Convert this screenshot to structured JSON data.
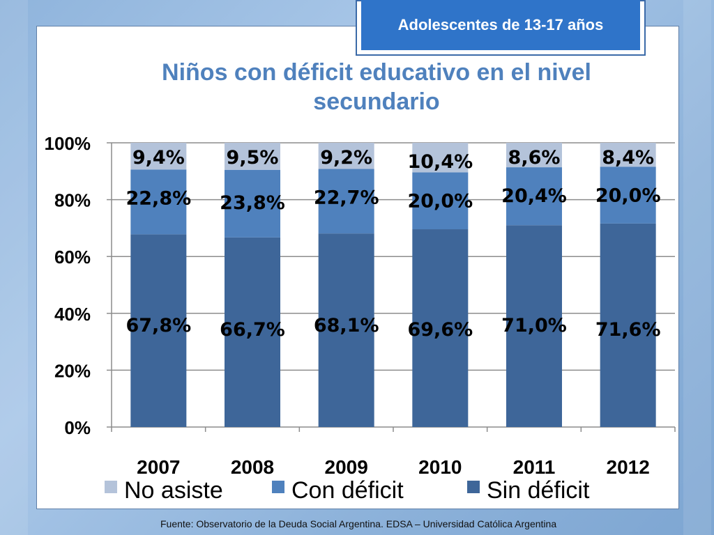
{
  "header_tag": "Adolescentes de 13-17 años",
  "footer": "Fuente:  Observatorio de  la Deuda Social Argentina. EDSA  – Universidad Católica Argentina",
  "colors": {
    "no_asiste": "#b4c3da",
    "con_deficit": "#4f81bd",
    "sin_deficit": "#3e6699",
    "title": "#4f81bd",
    "tag_bg": "#2f74c9"
  },
  "chart_data": {
    "type": "bar",
    "stacked": true,
    "title": "Niños con déficit educativo en el nivel secundario",
    "title_lines": [
      "Niños con déficit educativo en el nivel",
      "secundario"
    ],
    "categories": [
      "2007",
      "2008",
      "2009",
      "2010",
      "2011",
      "2012"
    ],
    "ylim": [
      0,
      100
    ],
    "yticks": [
      "0%",
      "20%",
      "40%",
      "60%",
      "80%",
      "100%"
    ],
    "grid": true,
    "legend_position": "bottom",
    "series": [
      {
        "name": "Sin déficit",
        "values": [
          67.8,
          66.7,
          68.1,
          69.6,
          71.0,
          71.6
        ],
        "labels": [
          "67,8%",
          "66,7%",
          "68,1%",
          "69,6%",
          "71,0%",
          "71,6%"
        ]
      },
      {
        "name": "Con déficit",
        "values": [
          22.8,
          23.8,
          22.7,
          20.0,
          20.4,
          20.0
        ],
        "labels": [
          "22,8%",
          "23,8%",
          "22,7%",
          "20,0%",
          "20,4%",
          "20,0%"
        ]
      },
      {
        "name": "No asiste",
        "values": [
          9.4,
          9.5,
          9.2,
          10.4,
          8.6,
          8.4
        ],
        "labels": [
          "9,4%",
          "9,5%",
          "9,2%",
          "10,4%",
          "8,6%",
          "8,4%"
        ]
      }
    ],
    "legend_order": [
      "No asiste",
      "Con déficit",
      "Sin déficit"
    ]
  }
}
